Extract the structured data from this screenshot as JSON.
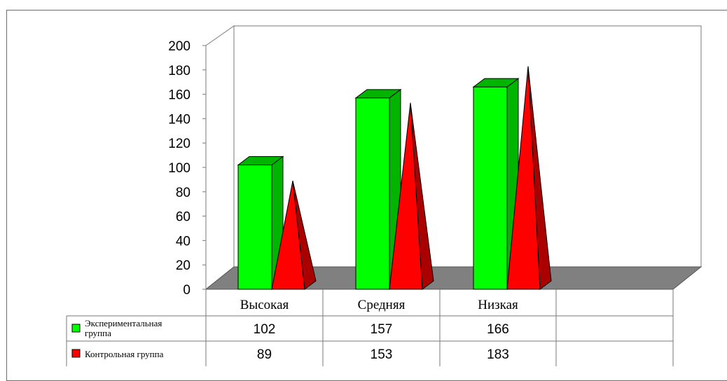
{
  "chart_data": {
    "type": "bar",
    "categories": [
      "Высокая",
      "Средняя",
      "Низкая"
    ],
    "series": [
      {
        "name": "Экспериментальная группа",
        "legend_lines": [
          "Экспериментальная",
          "группа"
        ],
        "values": [
          102,
          157,
          166
        ],
        "color": "#00ff00",
        "side_color": "#00b400",
        "shape": "box"
      },
      {
        "name": "Контрольная группа",
        "legend_lines": [
          "Контрольная группа"
        ],
        "values": [
          89,
          153,
          183
        ],
        "color": "#ff0000",
        "side_color": "#aa0000",
        "shape": "pyramid"
      }
    ],
    "yticks": [
      "0",
      "20",
      "40",
      "60",
      "80",
      "100",
      "120",
      "140",
      "160",
      "180",
      "200"
    ],
    "ylim": [
      0,
      200
    ],
    "grid": false,
    "legend": "data-table",
    "colors": {
      "wall": "#ffffff",
      "floor": "#808080",
      "axis": "#7a7a7a"
    }
  }
}
